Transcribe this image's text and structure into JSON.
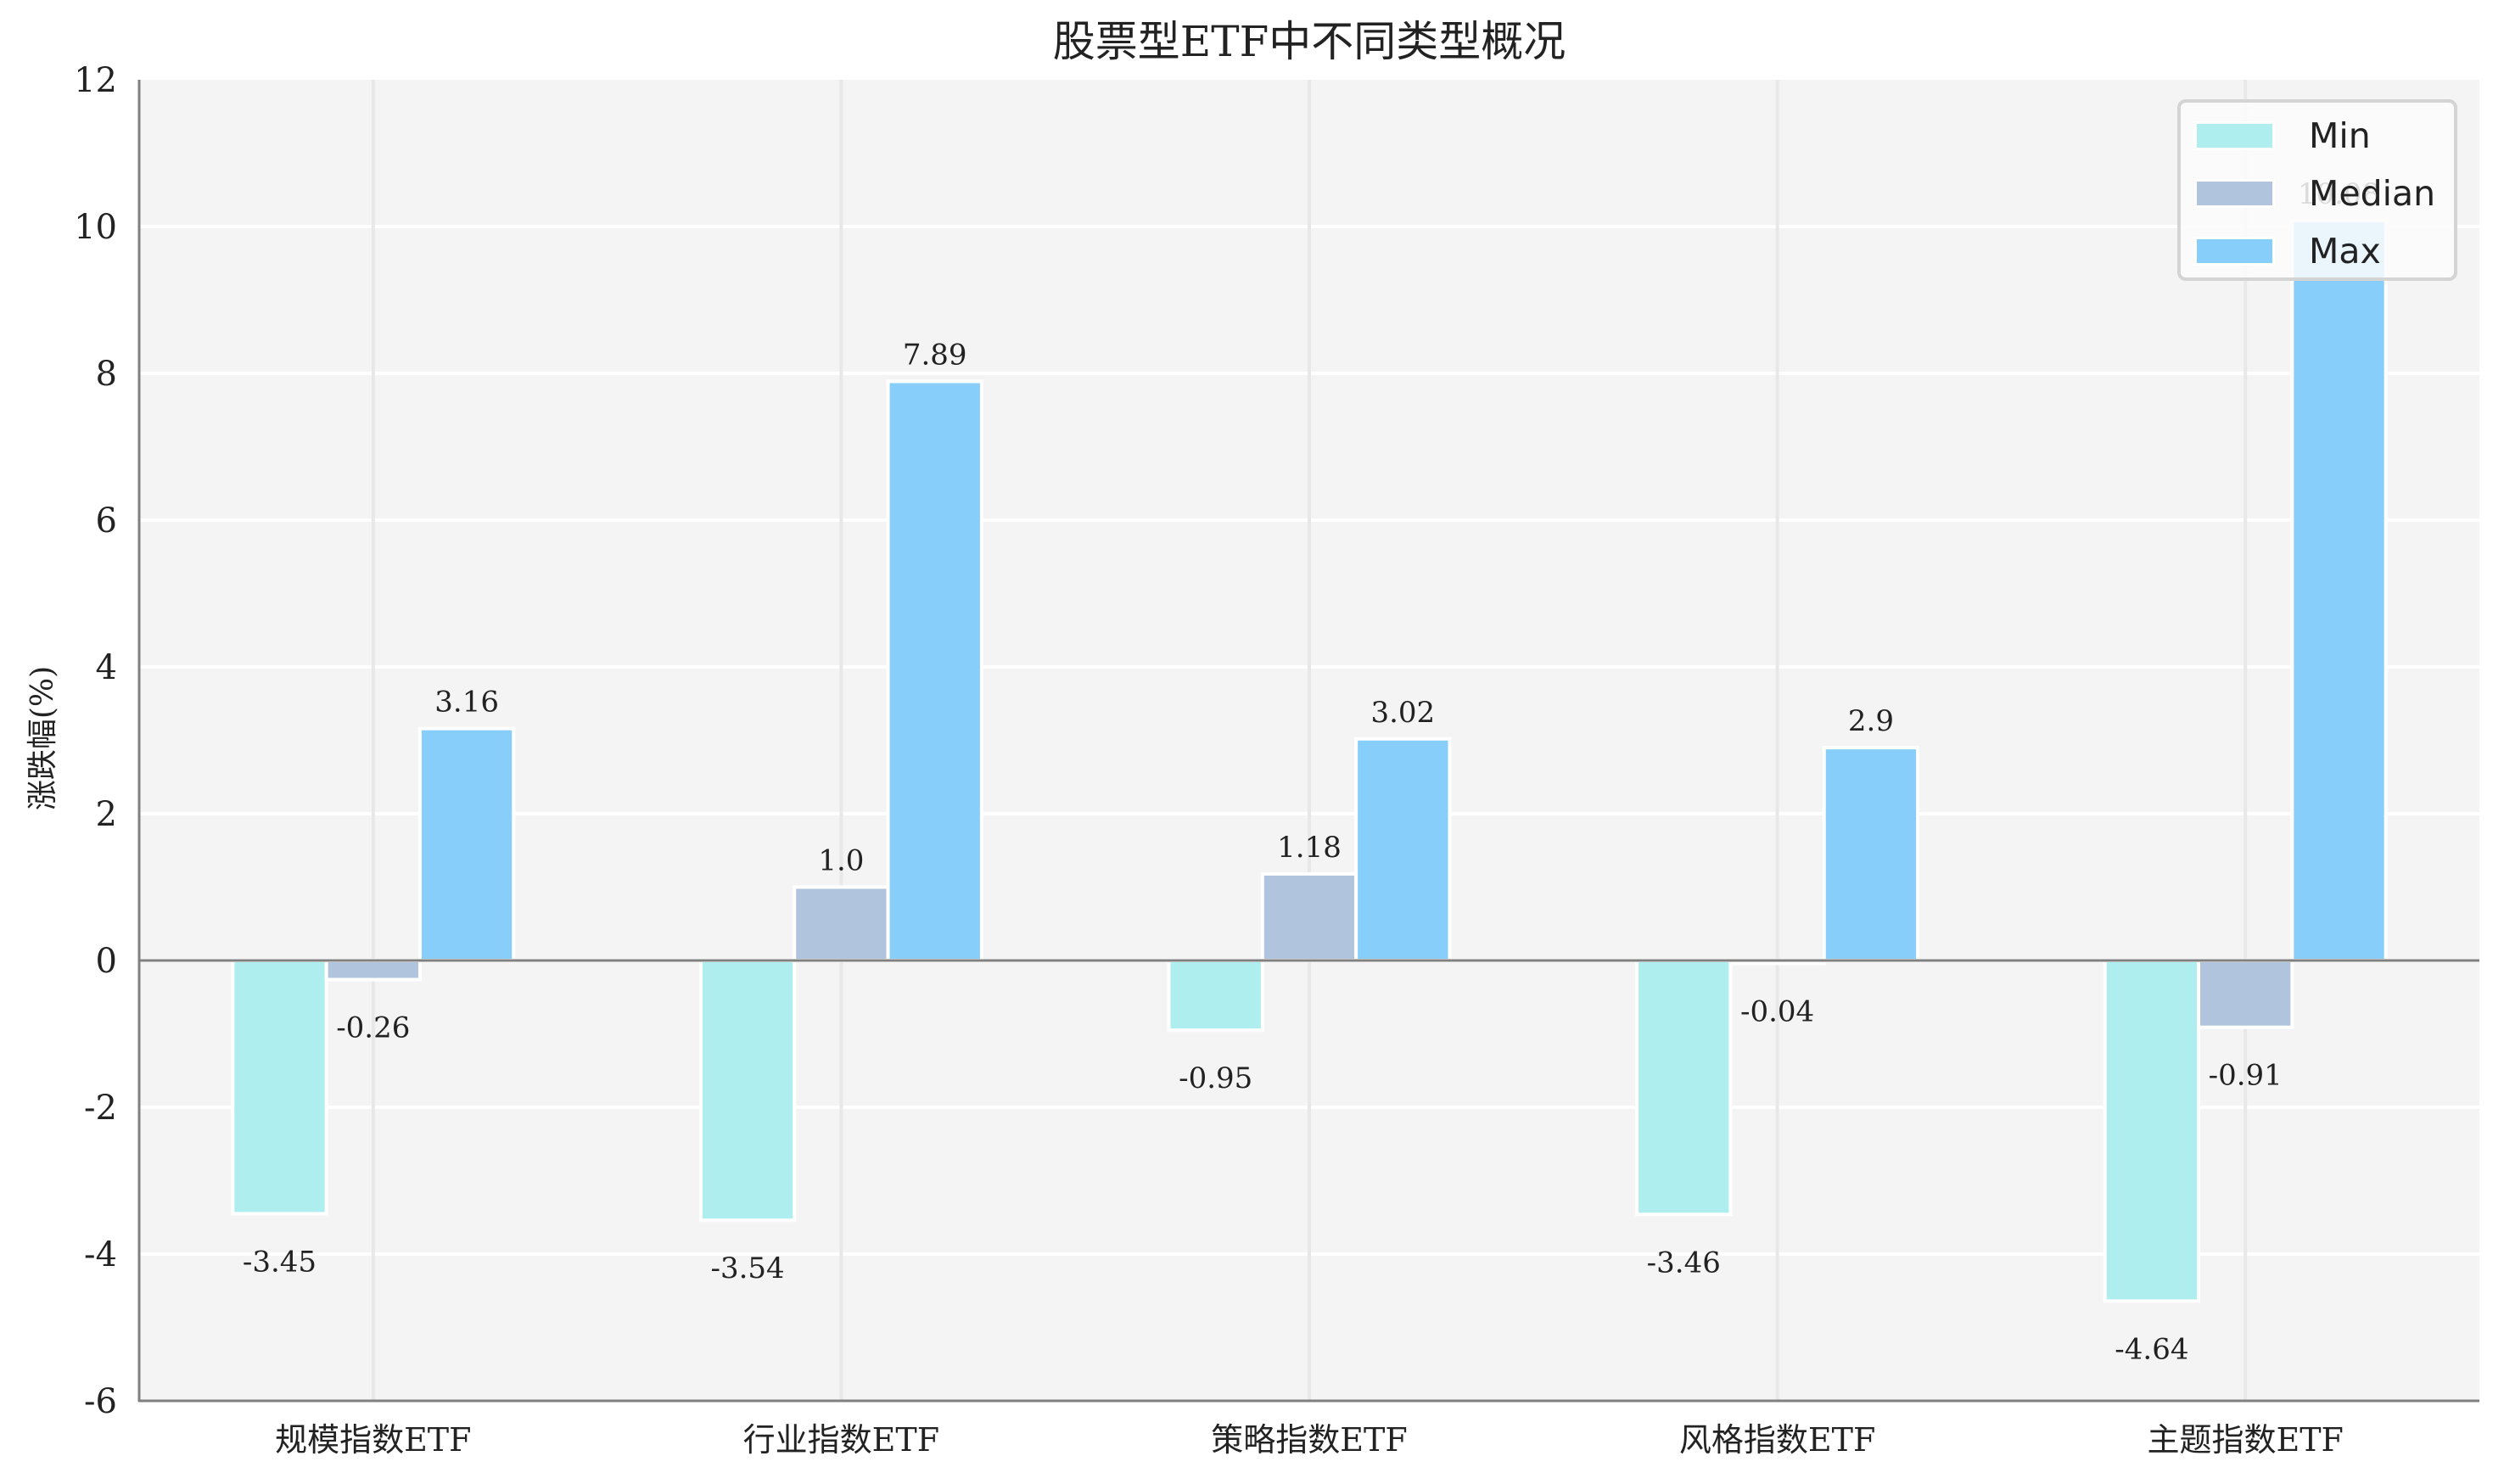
{
  "chart_data": {
    "type": "bar",
    "title": "股票型ETF中不同类型概况",
    "xlabel": "",
    "ylabel": "涨跌幅(%)",
    "categories": [
      "规模指数ETF",
      "行业指数ETF",
      "策略指数ETF",
      "风格指数ETF",
      "主题指数ETF"
    ],
    "series": [
      {
        "name": "Min",
        "color": "#afeeee",
        "values": [
          -3.45,
          -3.54,
          -0.95,
          -3.46,
          -4.64
        ],
        "labels": [
          "-3.45",
          "-3.54",
          "-0.95",
          "-3.46",
          "-4.64"
        ]
      },
      {
        "name": "Median",
        "color": "#b0c4de",
        "values": [
          -0.26,
          1.0,
          1.18,
          -0.04,
          -0.91
        ],
        "labels": [
          "-0.26",
          "1.0",
          "1.18",
          "-0.04",
          "-0.91"
        ]
      },
      {
        "name": "Max",
        "color": "#87cefa",
        "values": [
          3.16,
          7.89,
          3.02,
          2.9,
          10.08
        ],
        "labels": [
          "3.16",
          "7.89",
          "3.02",
          "2.9",
          "10.08"
        ]
      }
    ],
    "ylim": [
      -6,
      12
    ],
    "yticks": [
      -6,
      -4,
      -2,
      0,
      2,
      4,
      6,
      8,
      10,
      12
    ],
    "grid": true,
    "legend_position": "upper right",
    "background": "#f4f4f4"
  },
  "legend": {
    "items": [
      {
        "label": "Min",
        "color": "#afeeee"
      },
      {
        "label": "Median",
        "color": "#b0c4de"
      },
      {
        "label": "Max",
        "color": "#87cefa"
      }
    ]
  }
}
